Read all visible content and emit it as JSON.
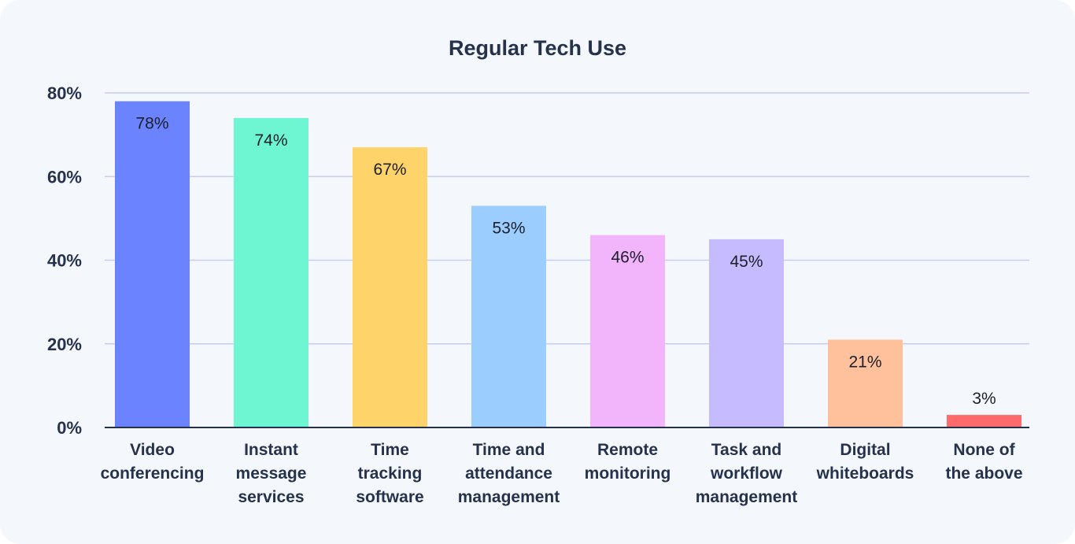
{
  "chart_data": {
    "type": "bar",
    "title": "Regular Tech Use",
    "xlabel": "",
    "ylabel": "",
    "ylim": [
      0,
      80
    ],
    "yticks": [
      "0%",
      "20%",
      "40%",
      "60%",
      "80%"
    ],
    "grid": true,
    "legend": "none",
    "categories": [
      [
        "Video",
        "conferencing"
      ],
      [
        "Instant",
        "message",
        "services"
      ],
      [
        "Time",
        "tracking",
        "software"
      ],
      [
        "Time and",
        "attendance",
        "management"
      ],
      [
        "Remote",
        "monitoring"
      ],
      [
        "Task and",
        "workflow",
        "management"
      ],
      [
        "Digital",
        "whiteboards"
      ],
      [
        "None of",
        "the above"
      ]
    ],
    "values": [
      78,
      74,
      67,
      53,
      46,
      45,
      21,
      3
    ],
    "value_labels": [
      "78%",
      "74%",
      "67%",
      "53%",
      "46%",
      "45%",
      "21%",
      "3%"
    ],
    "colors": [
      "#6b83ff",
      "#6ef5d1",
      "#fdd36a",
      "#9bcdff",
      "#f2b5fb",
      "#c6bbff",
      "#ffc19c",
      "#ff6b6b"
    ],
    "label_colors": [
      "#ffffff",
      "#1b1f2a",
      "#1b1f2a",
      "#1b1f2a",
      "#1b1f2a",
      "#1b1f2a",
      "#1b1f2a",
      "#1b1f2a"
    ]
  }
}
